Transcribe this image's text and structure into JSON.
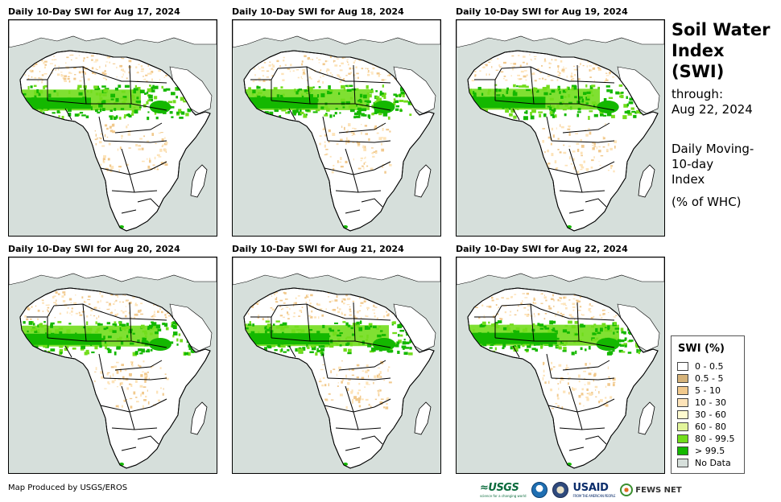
{
  "panels": [
    {
      "title": "Daily 10-Day SWI for Aug 17, 2024",
      "green_extent": 0.55
    },
    {
      "title": "Daily 10-Day SWI for Aug 18, 2024",
      "green_extent": 0.58
    },
    {
      "title": "Daily 10-Day SWI for Aug 19, 2024",
      "green_extent": 0.62
    },
    {
      "title": "Daily 10-Day SWI for Aug 20, 2024",
      "green_extent": 0.66
    },
    {
      "title": "Daily 10-Day SWI for Aug 21, 2024",
      "green_extent": 0.7
    },
    {
      "title": "Daily 10-Day SWI for Aug 22, 2024",
      "green_extent": 0.74
    }
  ],
  "sidebar": {
    "title_lines": [
      "Soil Water",
      "Index",
      "(SWI)"
    ],
    "through_label": "through:",
    "through_date": "Aug 22, 2024",
    "desc_lines": [
      "Daily Moving-",
      "10-day",
      "Index"
    ],
    "units": "(% of WHC)"
  },
  "legend": {
    "title": "SWI (%)",
    "items": [
      {
        "label": "0 - 0.5",
        "color": "#ffffff"
      },
      {
        "label": "0.5 - 5",
        "color": "#d6b37a"
      },
      {
        "label": "5 - 10",
        "color": "#f1c98d"
      },
      {
        "label": "10 - 30",
        "color": "#fde3b8"
      },
      {
        "label": "30 - 60",
        "color": "#fffbd0"
      },
      {
        "label": "60 - 80",
        "color": "#e2f59b"
      },
      {
        "label": "80 - 99.5",
        "color": "#72dd1c"
      },
      {
        "label": "> 99.5",
        "color": "#14b800"
      },
      {
        "label": "No Data",
        "color": "#d6dfdb"
      }
    ]
  },
  "colors": {
    "ocean": "#d6dfdb",
    "land": "#ffffff",
    "dry": "#f1c98d",
    "wet": "#72dd1c",
    "saturated": "#14b800"
  },
  "footer": {
    "credit": "Map Produced by USGS/EROS",
    "logos": {
      "usgs": "≈USGS",
      "usgs_tagline": "science for a changing world",
      "usaid": "USAID",
      "usaid_tagline": "FROM THE AMERICAN PEOPLE",
      "fews": "FEWS NET"
    }
  }
}
